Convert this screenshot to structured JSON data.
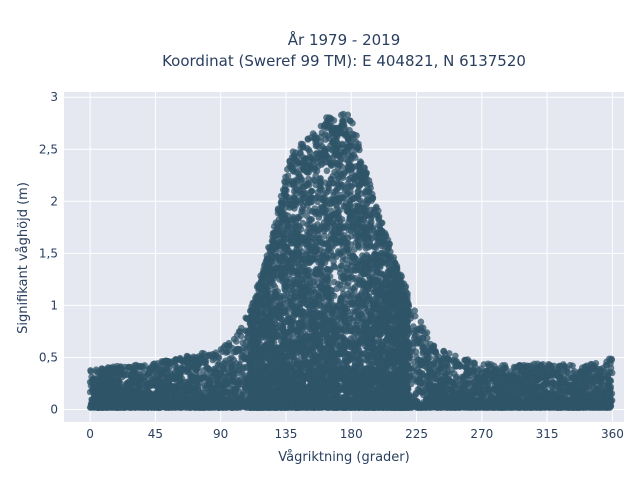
{
  "chart_data": {
    "type": "scatter",
    "title_lines": [
      "År 1979 - 2019",
      "Koordinat (Sweref 99 TM): E 404821, N 6137520"
    ],
    "xlabel": "Vågriktning (grader)",
    "ylabel": "Signifikant våghöjd (m)",
    "xlim": [
      -18,
      368
    ],
    "ylim": [
      -0.12,
      3.05
    ],
    "xticks": [
      0,
      45,
      90,
      135,
      180,
      225,
      270,
      315,
      360
    ],
    "xtick_labels": [
      "0",
      "45",
      "90",
      "135",
      "180",
      "225",
      "270",
      "315",
      "360"
    ],
    "yticks": [
      0,
      0.5,
      1,
      1.5,
      2,
      2.5,
      3
    ],
    "ytick_labels": [
      "0",
      "0,5",
      "1",
      "1,5",
      "2",
      "2,5",
      "3"
    ],
    "grid": true,
    "marker_color": "#2f5468",
    "plot_background": "#e5e8f0",
    "envelope": {
      "x": [
        0,
        20,
        45,
        60,
        80,
        90,
        100,
        110,
        120,
        130,
        135,
        140,
        150,
        160,
        165,
        170,
        175,
        180,
        185,
        190,
        200,
        210,
        220,
        230,
        240,
        255,
        270,
        290,
        315,
        340,
        360
      ],
      "max_height": [
        0.38,
        0.42,
        0.45,
        0.5,
        0.55,
        0.58,
        0.7,
        0.95,
        1.4,
        1.95,
        2.3,
        2.5,
        2.6,
        2.75,
        2.85,
        2.75,
        2.88,
        2.85,
        2.55,
        2.3,
        1.85,
        1.45,
        1.1,
        0.8,
        0.6,
        0.5,
        0.45,
        0.42,
        0.45,
        0.42,
        0.5
      ]
    }
  }
}
